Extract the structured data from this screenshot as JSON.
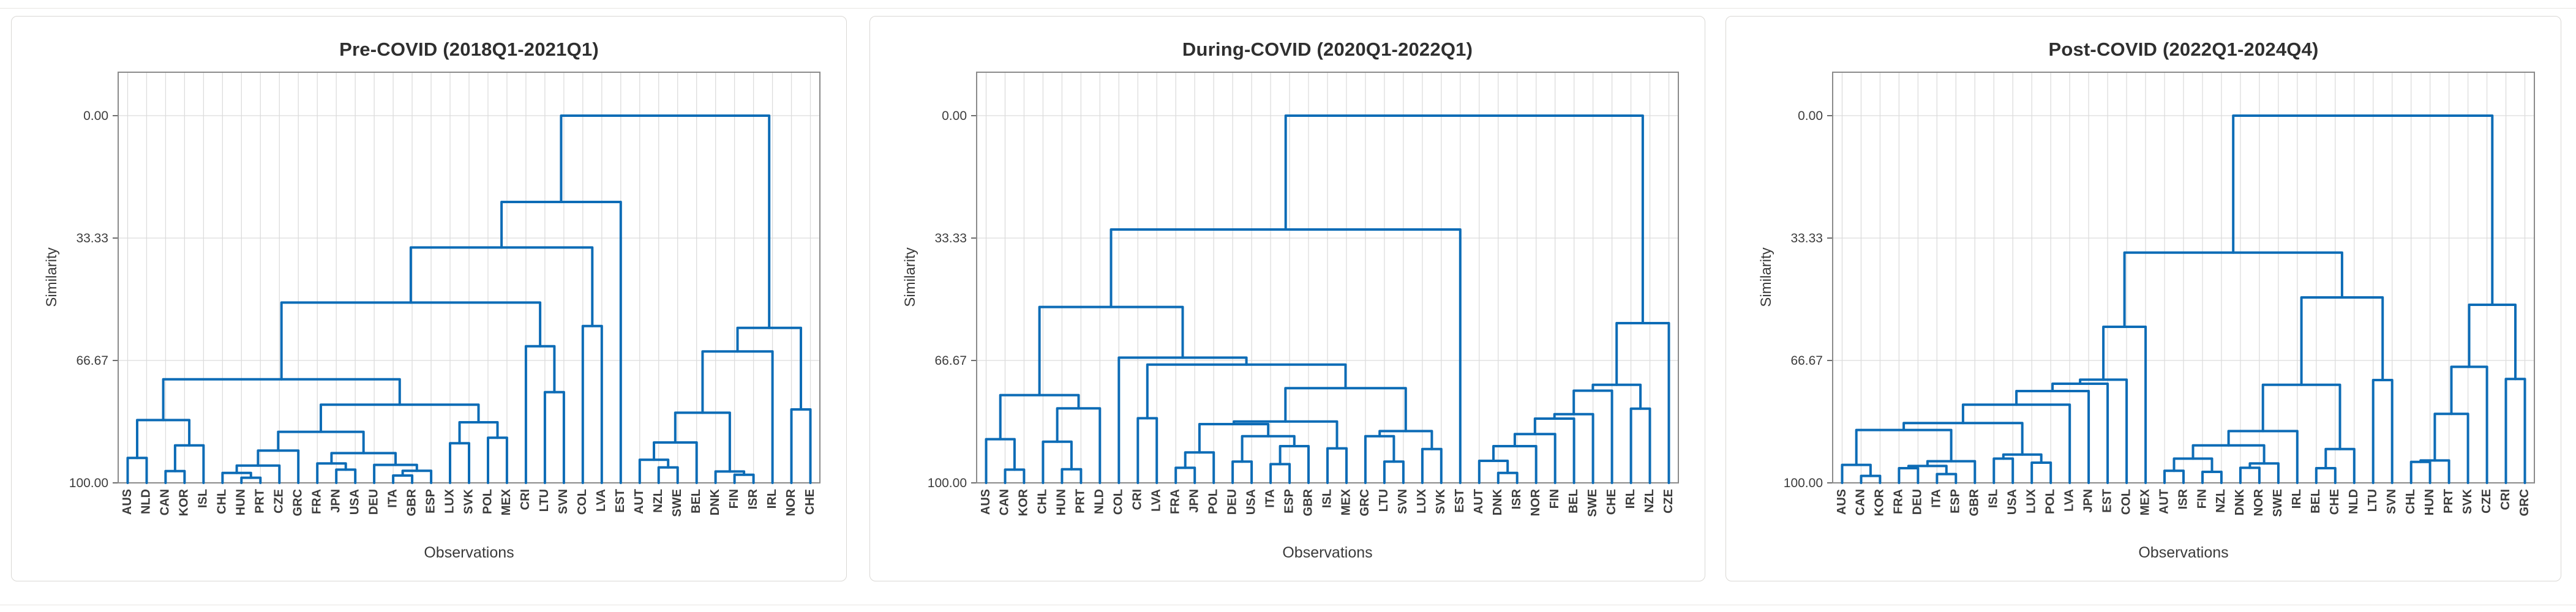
{
  "page": {
    "figure_type": "hierarchical clustering dendrograms",
    "n_panels": 3
  },
  "chart_data": [
    {
      "type": "dendrogram",
      "title": "Pre-COVID (2018Q1-2021Q1)",
      "xlabel": "Observations",
      "ylabel": "Similarity",
      "yticks": [
        "0.00",
        "33.33",
        "66.67",
        "100.00"
      ],
      "ytick_values": [
        0,
        33.33,
        66.67,
        100
      ],
      "ylim": [
        0,
        100
      ],
      "y_axis_inverted": true,
      "grid": true,
      "line_color": "#0d6cb6",
      "leaves": [
        "AUS",
        "NLD",
        "CAN",
        "KOR",
        "ISL",
        "CHL",
        "HUN",
        "PRT",
        "CZE",
        "GRC",
        "FRA",
        "JPN",
        "USA",
        "DEU",
        "ITA",
        "GBR",
        "ESP",
        "LUX",
        "SVK",
        "POL",
        "MEX",
        "CRI",
        "LTU",
        "SVN",
        "COL",
        "LVA",
        "EST",
        "AUT",
        "NZL",
        "SWE",
        "BEL",
        "DNK",
        "FIN",
        "ISR",
        "IRL",
        "NOR",
        "CHE"
      ],
      "linkage": [
        0,
        [
          23.5,
          [
            35.9,
            [
              50.9,
              [
                71.8,
                [
                  82.9,
                  [
                    93.2,
                    "AUS",
                    "NLD"
                  ],
                  [
                    89.8,
                    [
                      96.8,
                      "CAN",
                      "KOR"
                    ],
                    "ISL"
                  ]
                ],
                [
                  78.7,
                  [
                    86.1,
                    [
                      91.2,
                      [
                        95.3,
                        [
                          97.3,
                          "CHL",
                          [
                            98.6,
                            "HUN",
                            "PRT"
                          ]
                        ],
                        "CZE"
                      ],
                      "GRC"
                    ],
                    [
                      91.9,
                      [
                        94.7,
                        "FRA",
                        [
                          96.4,
                          "JPN",
                          "USA"
                        ]
                      ],
                      [
                        95.1,
                        "DEU",
                        [
                          96.7,
                          [
                            98.0,
                            "ITA",
                            "GBR"
                          ],
                          "ESP"
                        ]
                      ]
                    ]
                  ],
                  [
                    83.5,
                    [
                      89.2,
                      "LUX",
                      "SVK"
                    ],
                    [
                      87.7,
                      "POL",
                      "MEX"
                    ]
                  ]
                ]
              ],
              [
                62.8,
                "CRI",
                [
                  75.3,
                  "LTU",
                  "SVN"
                ]
              ]
            ],
            [
              57.3,
              "COL",
              "LVA"
            ]
          ],
          "EST"
        ],
        [
          57.8,
          [
            64.2,
            [
              80.9,
              [
                89.0,
                [
                  93.7,
                  "AUT",
                  [
                    95.8,
                    "NZL",
                    "SWE"
                  ]
                ],
                "BEL"
              ],
              [
                96.9,
                "DNK",
                [
                  97.8,
                  "FIN",
                  "ISR"
                ]
              ]
            ],
            "IRL"
          ],
          [
            80.0,
            "NOR",
            "CHE"
          ]
        ]
      ]
    },
    {
      "type": "dendrogram",
      "title": "During-COVID (2020Q1-2022Q1)",
      "xlabel": "Observations",
      "ylabel": "Similarity",
      "yticks": [
        "0.00",
        "33.33",
        "66.67",
        "100.00"
      ],
      "ytick_values": [
        0,
        33.33,
        66.67,
        100
      ],
      "ylim": [
        0,
        100
      ],
      "y_axis_inverted": true,
      "grid": true,
      "line_color": "#0d6cb6",
      "leaves": [
        "AUS",
        "CAN",
        "KOR",
        "CHL",
        "HUN",
        "PRT",
        "NLD",
        "COL",
        "CRI",
        "LVA",
        "FRA",
        "JPN",
        "POL",
        "DEU",
        "USA",
        "ITA",
        "ESP",
        "GBR",
        "ISL",
        "MEX",
        "GRC",
        "LTU",
        "SVN",
        "LUX",
        "SVK",
        "EST",
        "AUT",
        "DNK",
        "ISR",
        "NOR",
        "FIN",
        "BEL",
        "SWE",
        "CHE",
        "IRL",
        "NZL",
        "CZE"
      ],
      "linkage": [
        0,
        [
          31.0,
          [
            52.1,
            [
              76.1,
              [
                88.1,
                "AUS",
                [
                  96.4,
                  "CAN",
                  "KOR"
                ]
              ],
              [
                79.7,
                [
                  88.8,
                  "CHL",
                  [
                    96.3,
                    "HUN",
                    "PRT"
                  ]
                ],
                "NLD"
              ]
            ],
            [
              65.9,
              "COL",
              [
                67.8,
                [
                  82.4,
                  "CRI",
                  "LVA"
                ],
                [
                  74.2,
                  [
                    83.3,
                    [
                      84.0,
                      [
                        91.7,
                        [
                          95.9,
                          "FRA",
                          "JPN"
                        ],
                        "POL"
                      ],
                      [
                        87.3,
                        [
                          94.2,
                          "DEU",
                          "USA"
                        ],
                        [
                          90.0,
                          [
                            94.9,
                            "ITA",
                            "ESP"
                          ],
                          "GBR"
                        ]
                      ]
                    ],
                    [
                      90.6,
                      "ISL",
                      "MEX"
                    ]
                  ],
                  [
                    85.9,
                    [
                      87.3,
                      "GRC",
                      [
                        94.2,
                        "LTU",
                        "SVN"
                      ]
                    ],
                    [
                      90.8,
                      "LUX",
                      "SVK"
                    ]
                  ]
                ]
              ]
            ]
          ],
          "EST"
        ],
        [
          56.5,
          [
            73.3,
            [
              74.9,
              [
                81.3,
                [
                  82.5,
                  [
                    86.7,
                    [
                      90.0,
                      [
                        94.0,
                        "AUT",
                        [
                          97.3,
                          "DNK",
                          "ISR"
                        ]
                      ],
                      "NOR"
                    ],
                    "FIN"
                  ],
                  "BEL"
                ],
                "SWE"
              ],
              "CHE"
            ],
            [
              79.8,
              "IRL",
              "NZL"
            ]
          ],
          "CZE"
        ]
      ]
    },
    {
      "type": "dendrogram",
      "title": "Post-COVID (2022Q1-2024Q4)",
      "xlabel": "Observations",
      "ylabel": "Similarity",
      "yticks": [
        "0.00",
        "33.33",
        "66.67",
        "100.00"
      ],
      "ytick_values": [
        0,
        33.33,
        66.67,
        100
      ],
      "ylim": [
        0,
        100
      ],
      "y_axis_inverted": true,
      "grid": true,
      "line_color": "#0d6cb6",
      "leaves": [
        "AUS",
        "CAN",
        "KOR",
        "FRA",
        "DEU",
        "ITA",
        "ESP",
        "GBR",
        "ISL",
        "USA",
        "LUX",
        "POL",
        "LVA",
        "JPN",
        "EST",
        "COL",
        "MEX",
        "AUT",
        "ISR",
        "FIN",
        "NZL",
        "DNK",
        "NOR",
        "SWE",
        "IRL",
        "BEL",
        "CHE",
        "NLD",
        "LTU",
        "SVN",
        "CHL",
        "HUN",
        "PRT",
        "SVK",
        "CZE",
        "CRI",
        "GRC"
      ],
      "linkage": [
        0,
        [
          37.3,
          [
            57.5,
            [
              71.9,
              [
                73.0,
                [
                  75.0,
                  [
                    78.7,
                    [
                      83.7,
                      [
                        85.6,
                        [
                          95.1,
                          "AUS",
                          [
                            98.1,
                            "CAN",
                            "KOR"
                          ]
                        ],
                        [
                          94.1,
                          [
                            95.4,
                            [
                              96.0,
                              "FRA",
                              "DEU"
                            ],
                            [
                              97.6,
                              "ITA",
                              "ESP"
                            ]
                          ],
                          "GBR"
                        ]
                      ],
                      [
                        92.3,
                        [
                          93.4,
                          "ISL",
                          "USA"
                        ],
                        [
                          94.5,
                          "LUX",
                          "POL"
                        ]
                      ]
                    ],
                    "LVA"
                  ],
                  "JPN"
                ],
                "EST"
              ],
              "COL"
            ],
            "MEX"
          ],
          [
            49.5,
            [
              73.3,
              [
                85.9,
                [
                  89.8,
                  [
                    93.4,
                    [
                      96.7,
                      "AUT",
                      "ISR"
                    ],
                    [
                      97.0,
                      "FIN",
                      "NZL"
                    ]
                  ],
                  [
                    94.7,
                    [
                      95.9,
                      "DNK",
                      "NOR"
                    ],
                    "SWE"
                  ]
                ],
                "IRL"
              ],
              [
                90.8,
                [
                  96.0,
                  "BEL",
                  "CHE"
                ],
                "NLD"
              ]
            ],
            [
              72.0,
              "LTU",
              "SVN"
            ]
          ]
        ],
        [
          51.5,
          [
            68.4,
            [
              81.2,
              [
                93.9,
                [
                  94.3,
                  "CHL",
                  "HUN"
                ],
                "PRT"
              ],
              "SVK"
            ],
            "CZE"
          ],
          [
            71.7,
            "CRI",
            "GRC"
          ]
        ]
      ]
    }
  ]
}
